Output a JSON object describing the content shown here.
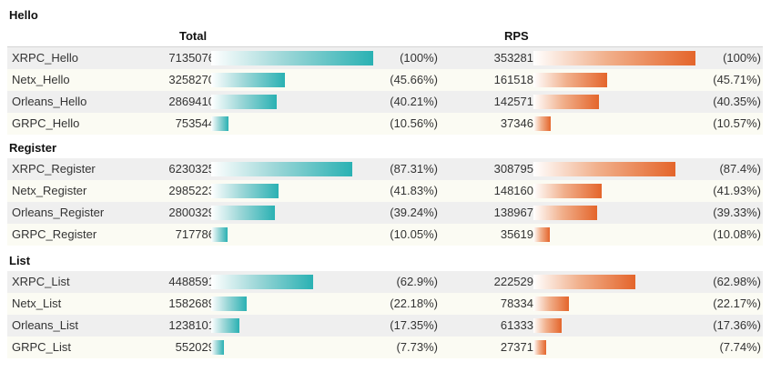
{
  "headers": {
    "total": "Total",
    "rps": "RPS"
  },
  "chart_data": {
    "type": "table",
    "columns": [
      "Total",
      "RPS"
    ],
    "groups": [
      {
        "title": "Hello",
        "rows": [
          {
            "name": "XRPC_Hello",
            "total": 7135076,
            "total_pct": "(100%)",
            "rps": 353281,
            "rps_pct": "(100%)"
          },
          {
            "name": "Netx_Hello",
            "total": 3258270,
            "total_pct": "(45.66%)",
            "rps": 161518,
            "rps_pct": "(45.71%)"
          },
          {
            "name": "Orleans_Hello",
            "total": 2869410,
            "total_pct": "(40.21%)",
            "rps": 142571,
            "rps_pct": "(40.35%)"
          },
          {
            "name": "GRPC_Hello",
            "total": 753544,
            "total_pct": "(10.56%)",
            "rps": 37346,
            "rps_pct": "(10.57%)"
          }
        ]
      },
      {
        "title": "Register",
        "rows": [
          {
            "name": "XRPC_Register",
            "total": 6230325,
            "total_pct": "(87.31%)",
            "rps": 308795,
            "rps_pct": "(87.4%)"
          },
          {
            "name": "Netx_Register",
            "total": 2985223,
            "total_pct": "(41.83%)",
            "rps": 148160,
            "rps_pct": "(41.93%)"
          },
          {
            "name": "Orleans_Register",
            "total": 2800329,
            "total_pct": "(39.24%)",
            "rps": 138967,
            "rps_pct": "(39.33%)"
          },
          {
            "name": "GRPC_Register",
            "total": 717786,
            "total_pct": "(10.05%)",
            "rps": 35619,
            "rps_pct": "(10.08%)"
          }
        ]
      },
      {
        "title": "List",
        "rows": [
          {
            "name": "XRPC_List",
            "total": 4488591,
            "total_pct": "(62.9%)",
            "rps": 222529,
            "rps_pct": "(62.98%)"
          },
          {
            "name": "Netx_List",
            "total": 1582689,
            "total_pct": "(22.18%)",
            "rps": 78334,
            "rps_pct": "(22.17%)"
          },
          {
            "name": "Orleans_List",
            "total": 1238101,
            "total_pct": "(17.35%)",
            "rps": 61333,
            "rps_pct": "(17.36%)"
          },
          {
            "name": "GRPC_List",
            "total": 552029,
            "total_pct": "(7.73%)",
            "rps": 27371,
            "rps_pct": "(7.74%)"
          }
        ]
      }
    ]
  }
}
